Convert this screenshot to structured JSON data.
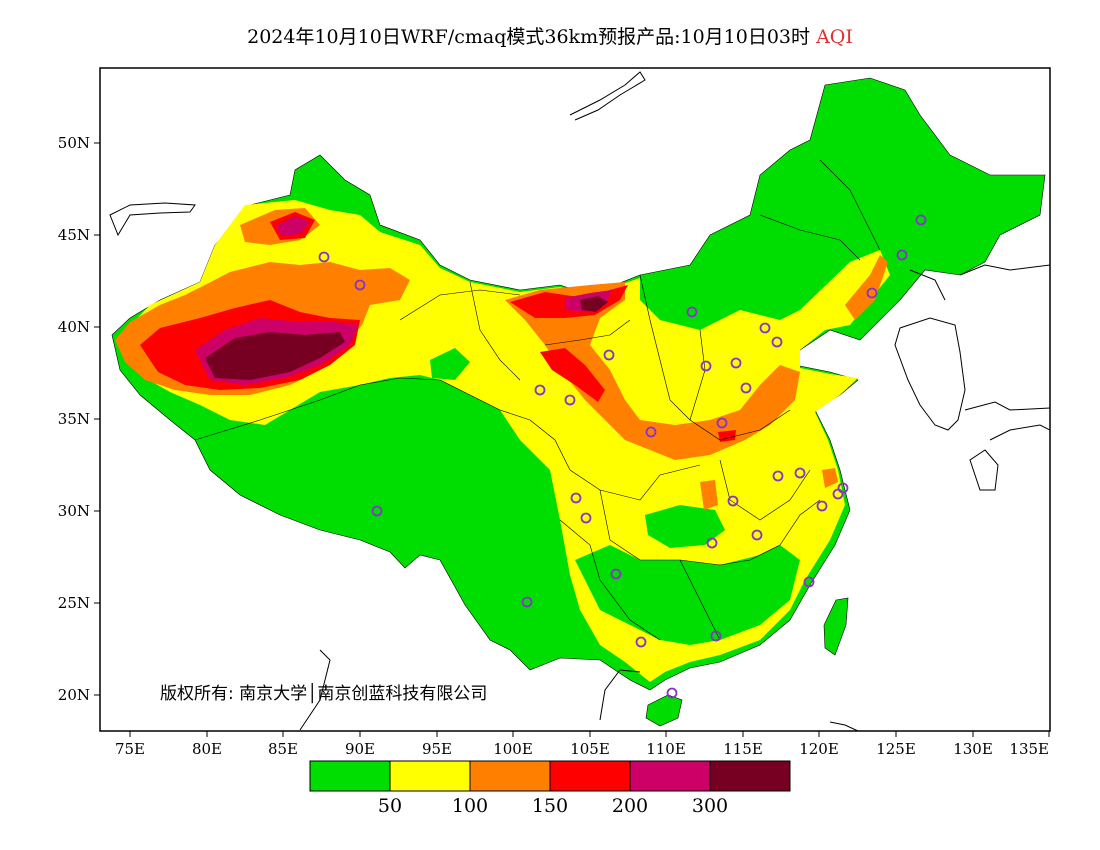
{
  "title": {
    "main": "2024年10月10日WRF/cmaq模式36km预报产品:10月10日03时",
    "variable": "AQI"
  },
  "axes": {
    "lon_ticks": [
      "75E",
      "80E",
      "85E",
      "90E",
      "95E",
      "100E",
      "105E",
      "110E",
      "115E",
      "120E",
      "125E",
      "130E",
      "135E"
    ],
    "lat_ticks": [
      "20N",
      "25N",
      "30N",
      "35N",
      "40N",
      "45N",
      "50N"
    ]
  },
  "copyright": "版权所有: 南京大学│南京创蓝科技有限公司",
  "legend": {
    "colors": [
      "#00dd00",
      "#ffff00",
      "#ff8000",
      "#ff0000",
      "#cc0066",
      "#770022"
    ],
    "labels": [
      "50",
      "100",
      "150",
      "200",
      "300"
    ]
  },
  "colors": {
    "marker": "#8833cc",
    "frame": "#000000"
  }
}
